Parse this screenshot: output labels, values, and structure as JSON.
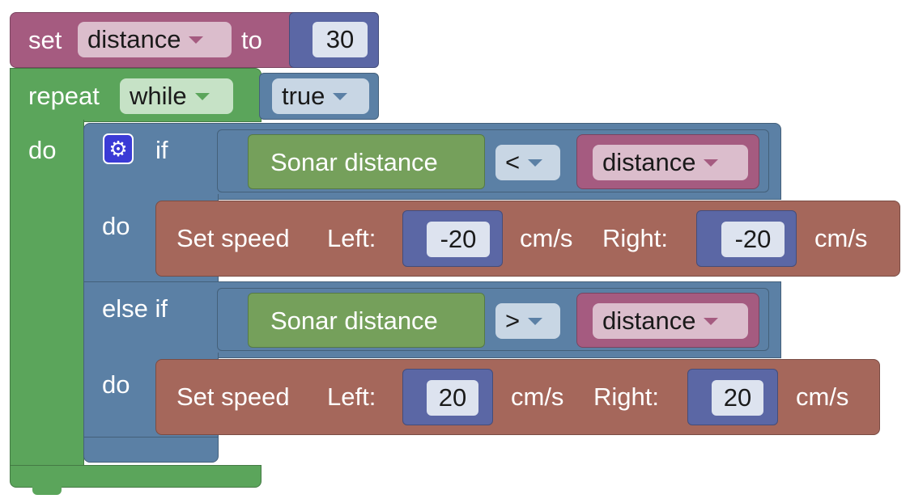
{
  "set_block": {
    "keyword_set": "set",
    "variable": "distance",
    "keyword_to": "to",
    "value": "30"
  },
  "repeat_block": {
    "keyword": "repeat",
    "mode": "while",
    "condition": "true",
    "do_label": "do"
  },
  "if_block": {
    "if_label": "if",
    "do_label_1": "do",
    "else_if_label": "else if",
    "do_label_2": "do",
    "condition_1": {
      "sensor": "Sonar distance",
      "operator": "<",
      "variable": "distance"
    },
    "action_1": {
      "label": "Set speed",
      "left_label": "Left:",
      "left_value": "-20",
      "left_unit": "cm/s",
      "right_label": "Right:",
      "right_value": "-20",
      "right_unit": "cm/s"
    },
    "condition_2": {
      "sensor": "Sonar distance",
      "operator": ">",
      "variable": "distance"
    },
    "action_2": {
      "label": "Set speed",
      "left_label": "Left:",
      "left_value": "20",
      "left_unit": "cm/s",
      "right_label": "Right:",
      "right_value": "20",
      "right_unit": "cm/s"
    }
  },
  "colors": {
    "variables": "#a55b80",
    "loops": "#5ba55b",
    "logic": "#5b80a5",
    "motors": "#a5675b",
    "sensors": "#75a05b",
    "math": "#5b67a5"
  },
  "icons": {
    "mutator": "gear-icon"
  }
}
